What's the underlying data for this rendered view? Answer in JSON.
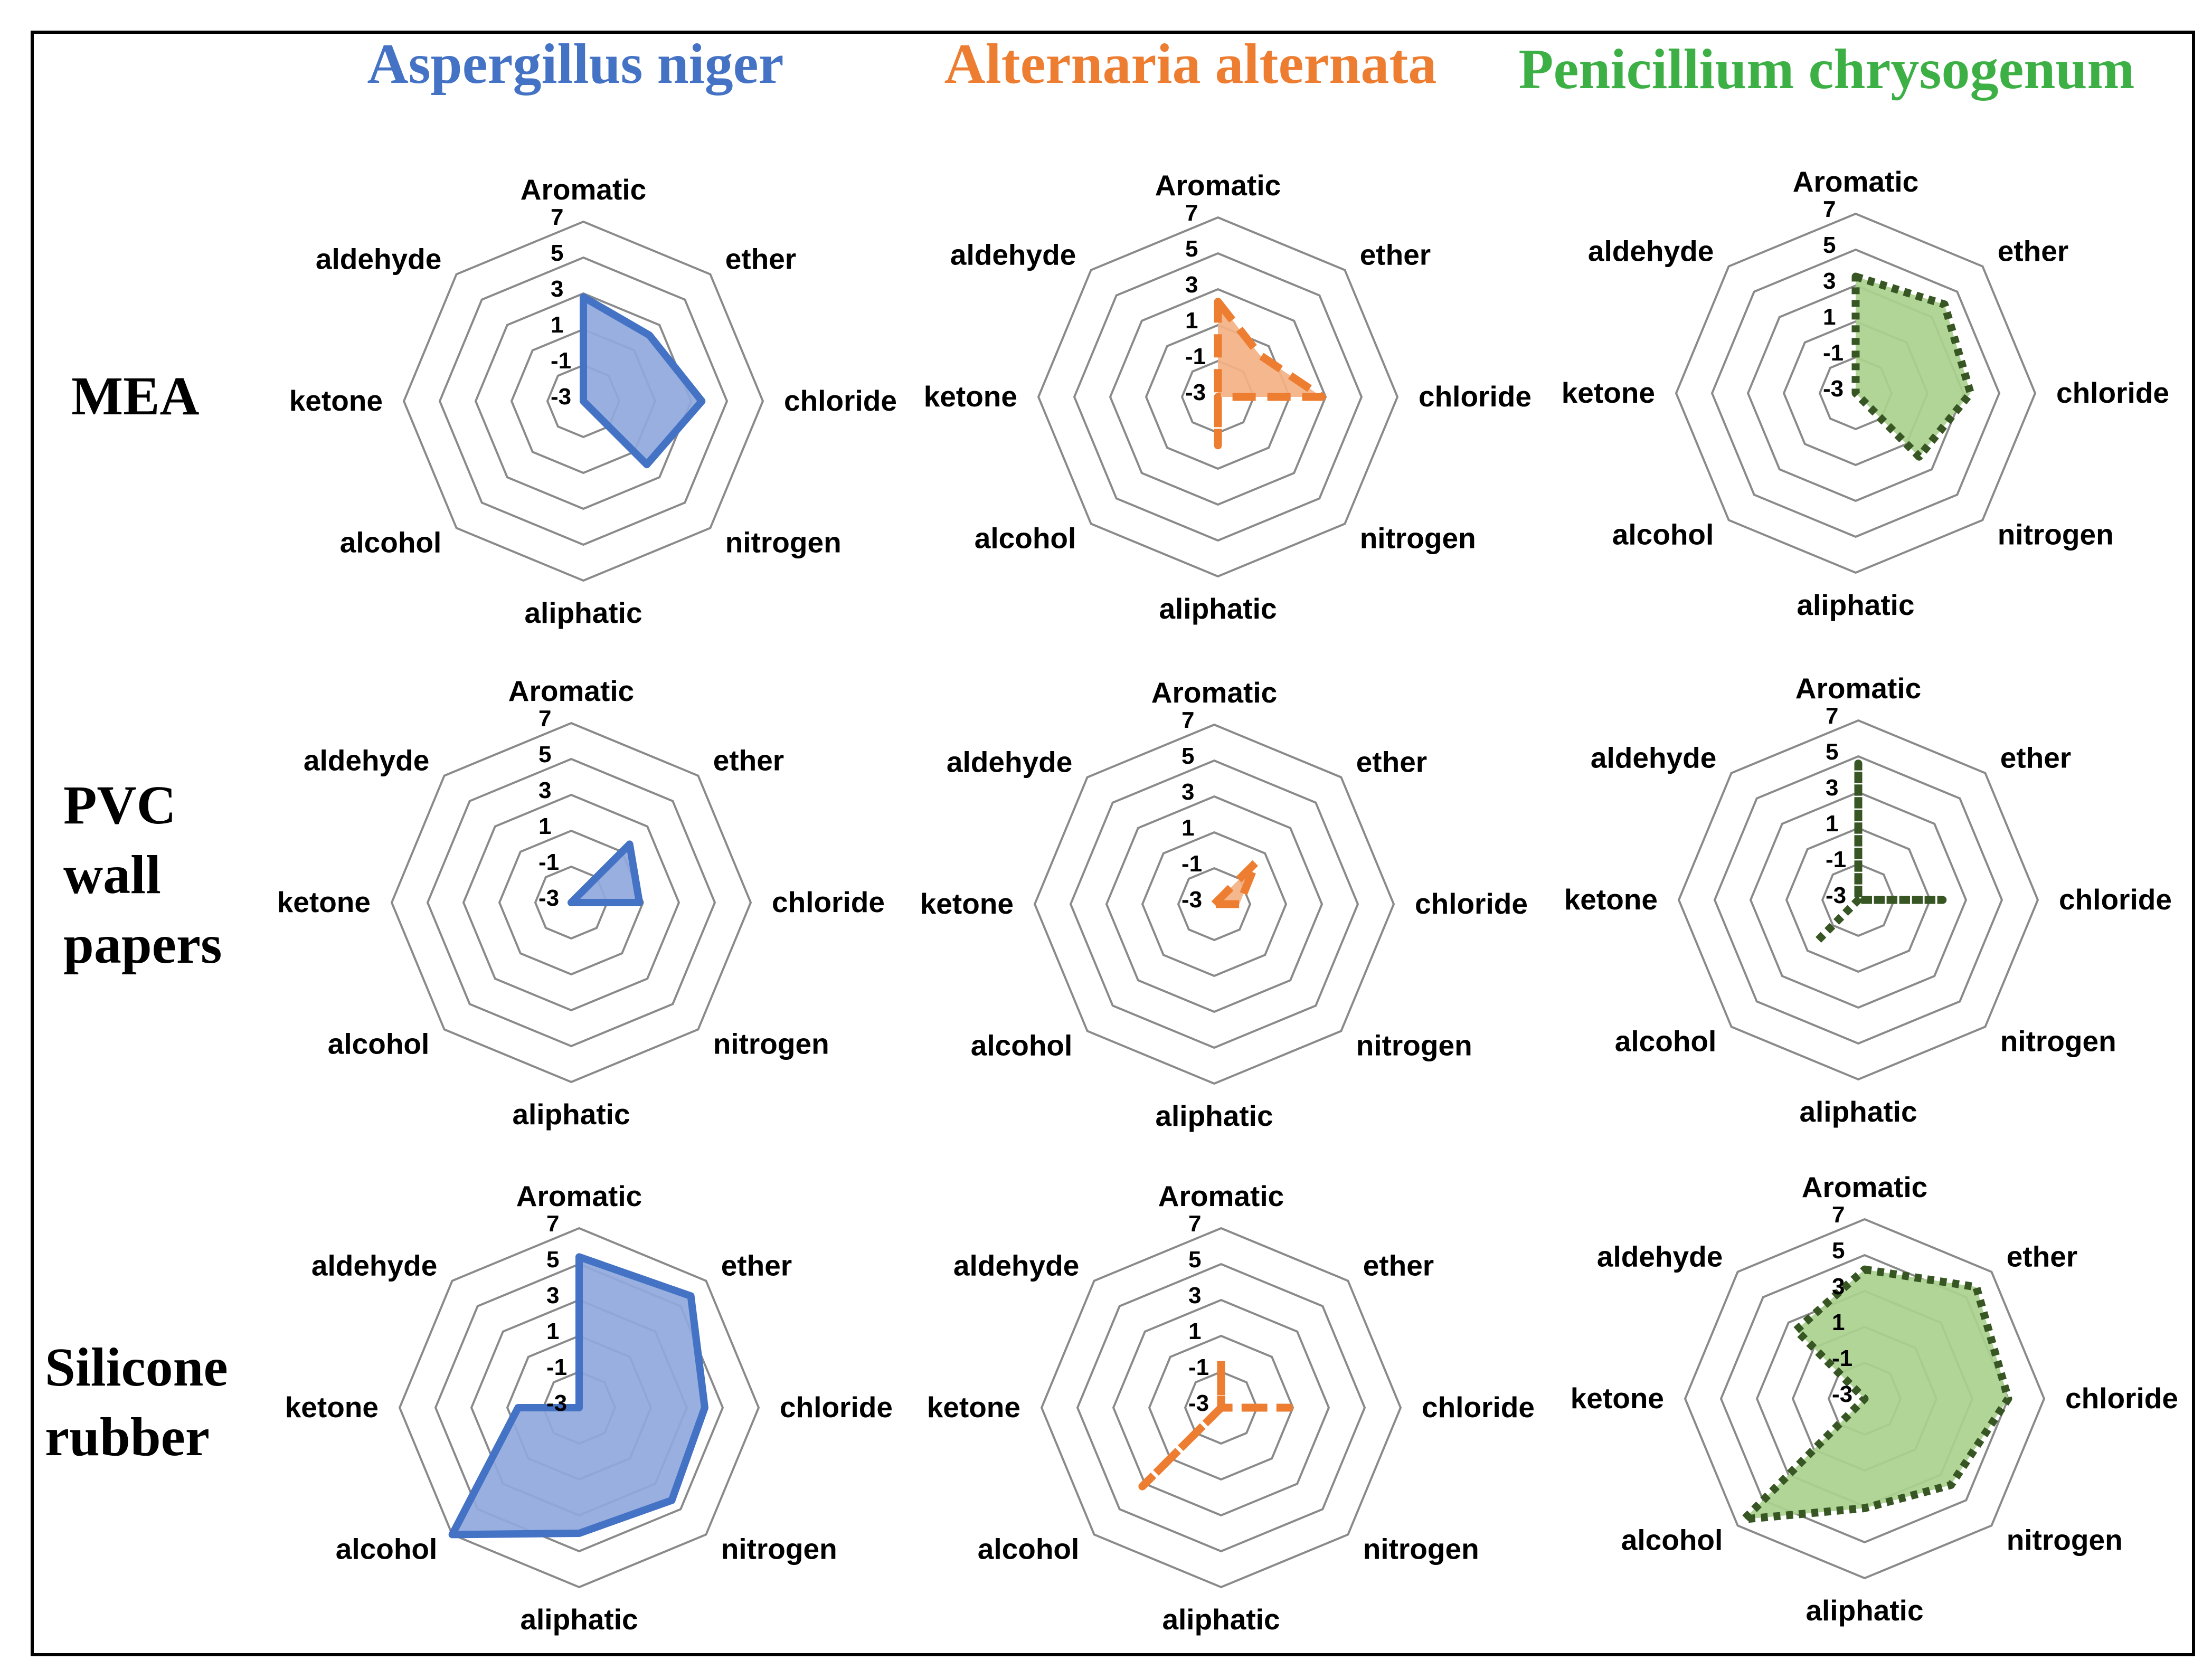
{
  "figure": {
    "columns": [
      {
        "title": "Aspergillus niger",
        "color": "#4472C4",
        "fill": "#8FA8DC",
        "line_style": "solid"
      },
      {
        "title": "Alternaria alternata",
        "color": "#ED7D31",
        "fill": "#F4B183",
        "line_style": "dashed"
      },
      {
        "title": "Penicillium chrysogenum",
        "color": "#375623",
        "fill": "#A9D18E",
        "line_style": "dotted"
      }
    ],
    "title_colors": [
      "#4472C4",
      "#ED7D31",
      "#3CB044"
    ],
    "row_labels": [
      [
        "MEA"
      ],
      [
        "PVC",
        "wall",
        "papers"
      ],
      [
        "Silicone",
        "rubber"
      ]
    ]
  },
  "chart_data": [
    {
      "type": "radar",
      "panel": "MEA - Aspergillus niger",
      "categories": [
        "Aromatic",
        "ether",
        "chloride",
        "nitrogen",
        "aliphatic",
        "alcohol",
        "ketone",
        "aldehyde"
      ],
      "ticks": [
        "7",
        "5",
        "3",
        "1",
        "-1",
        "-3"
      ],
      "rlim": [
        -3,
        7
      ],
      "values": [
        2.8,
        2.2,
        3.6,
        2.0,
        -3,
        -3,
        -3,
        -3
      ]
    },
    {
      "type": "radar",
      "panel": "MEA - Alternaria alternata",
      "categories": [
        "Aromatic",
        "ether",
        "chloride",
        "nitrogen",
        "aliphatic",
        "alcohol",
        "ketone",
        "aldehyde"
      ],
      "ticks": [
        "7",
        "5",
        "3",
        "1",
        "-1",
        "-3"
      ],
      "rlim": [
        -3,
        7
      ],
      "values": [
        2.3,
        0.3,
        2.8,
        -3,
        -0.3,
        -3,
        -3,
        -3
      ]
    },
    {
      "type": "radar",
      "panel": "MEA - Penicillium chrysogenum",
      "categories": [
        "Aromatic",
        "ether",
        "chloride",
        "nitrogen",
        "aliphatic",
        "alcohol",
        "ketone",
        "aldehyde"
      ],
      "ticks": [
        "7",
        "5",
        "3",
        "1",
        "-1",
        "-3"
      ],
      "rlim": [
        -3,
        7
      ],
      "values": [
        3.5,
        4.0,
        3.4,
        2.0,
        -3,
        -3,
        -3,
        -3
      ]
    },
    {
      "type": "radar",
      "panel": "PVC wall papers - Aspergillus niger",
      "categories": [
        "Aromatic",
        "ether",
        "chloride",
        "nitrogen",
        "aliphatic",
        "alcohol",
        "ketone",
        "aldehyde"
      ],
      "ticks": [
        "7",
        "5",
        "3",
        "1",
        "-1",
        "-3"
      ],
      "rlim": [
        -3,
        7
      ],
      "values": [
        -3,
        1.6,
        0.8,
        -3,
        -3,
        -3,
        -3,
        -3
      ]
    },
    {
      "type": "radar",
      "panel": "PVC wall papers - Alternaria alternata",
      "categories": [
        "Aromatic",
        "ether",
        "chloride",
        "nitrogen",
        "aliphatic",
        "alcohol",
        "ketone",
        "aldehyde"
      ],
      "ticks": [
        "7",
        "5",
        "3",
        "1",
        "-1",
        "-3"
      ],
      "rlim": [
        -3,
        7
      ],
      "values": [
        -3,
        0.3,
        -1.6,
        -3,
        -3,
        -3,
        -3,
        -3
      ]
    },
    {
      "type": "radar",
      "panel": "PVC wall papers - Penicillium chrysogenum",
      "categories": [
        "Aromatic",
        "ether",
        "chloride",
        "nitrogen",
        "aliphatic",
        "alcohol",
        "ketone",
        "aldehyde"
      ],
      "ticks": [
        "7",
        "5",
        "3",
        "1",
        "-1",
        "-3"
      ],
      "rlim": [
        -3,
        7
      ],
      "values": [
        4.6,
        -3,
        1.7,
        -3,
        -3,
        0.3,
        -3,
        -3
      ]
    },
    {
      "type": "radar",
      "panel": "Silicone rubber - Aspergillus niger",
      "categories": [
        "Aromatic",
        "ether",
        "chloride",
        "nitrogen",
        "aliphatic",
        "alcohol",
        "ketone",
        "aldehyde"
      ],
      "ticks": [
        "7",
        "5",
        "3",
        "1",
        "-1",
        "-3"
      ],
      "rlim": [
        -3,
        7
      ],
      "values": [
        5.4,
        5.8,
        4.0,
        4.3,
        4.0,
        7.0,
        0.4,
        -3
      ]
    },
    {
      "type": "radar",
      "panel": "Silicone rubber - Alternaria alternata",
      "categories": [
        "Aromatic",
        "ether",
        "chloride",
        "nitrogen",
        "aliphatic",
        "alcohol",
        "ketone",
        "aldehyde"
      ],
      "ticks": [
        "7",
        "5",
        "3",
        "1",
        "-1",
        "-3"
      ],
      "rlim": [
        -3,
        7
      ],
      "values": [
        -0.4,
        -3,
        0.8,
        -3,
        -3,
        3.2,
        -3,
        -3
      ]
    },
    {
      "type": "radar",
      "panel": "Silicone rubber - Penicillium chrysogenum",
      "categories": [
        "Aromatic",
        "ether",
        "chloride",
        "nitrogen",
        "aliphatic",
        "alcohol",
        "ketone",
        "aldehyde"
      ],
      "ticks": [
        "7",
        "5",
        "3",
        "1",
        "-1",
        "-3"
      ],
      "rlim": [
        -3,
        7
      ],
      "values": [
        4.2,
        5.8,
        5.0,
        3.8,
        3.1,
        6.5,
        -3,
        2.4
      ]
    }
  ]
}
